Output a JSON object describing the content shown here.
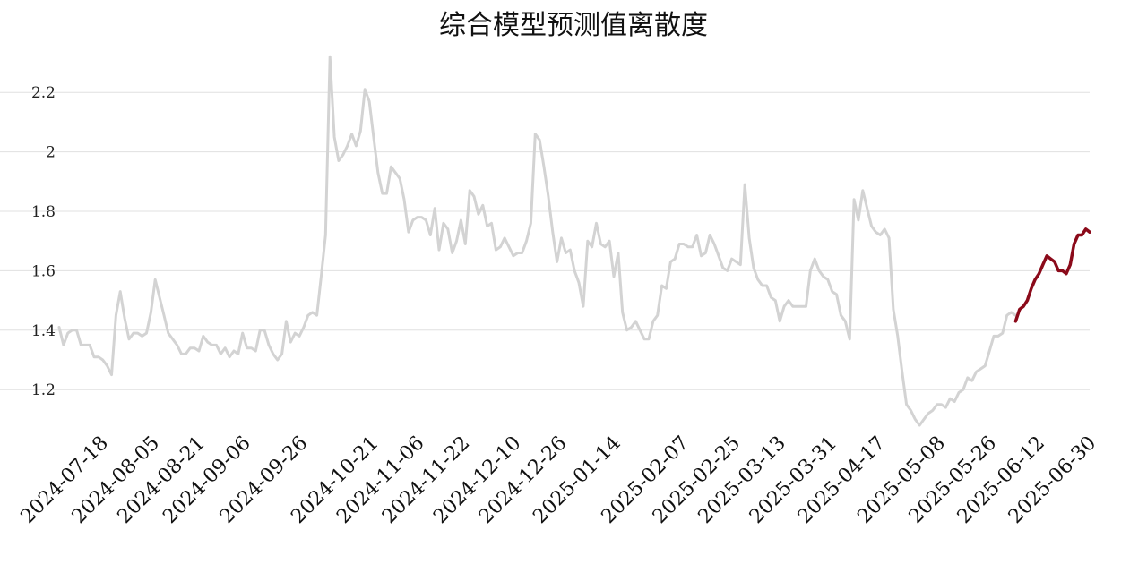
{
  "title": "综合模型预测值离散度",
  "chart_data": {
    "type": "line",
    "title": "综合模型预测值离散度",
    "xlabel": "",
    "ylabel": "",
    "ylim": [
      1.05,
      2.33
    ],
    "yticks": [
      1.2,
      1.4,
      1.6,
      1.8,
      2,
      2.2
    ],
    "ytick_labels": [
      "1.2",
      "1.4",
      "1.6",
      "1.8",
      "2",
      "2.2"
    ],
    "xtick_labels": [
      "2024-07-18",
      "2024-08-05",
      "2024-08-21",
      "2024-09-06",
      "2024-09-26",
      "2024-10-21",
      "2024-11-06",
      "2024-11-22",
      "2024-12-10",
      "2024-12-26",
      "2025-01-14",
      "2025-02-07",
      "2025-02-25",
      "2025-03-13",
      "2025-03-31",
      "2025-04-17",
      "2025-05-08",
      "2025-05-26",
      "2025-06-12",
      "2025-06-30"
    ],
    "grid": true,
    "legend": "none",
    "colors": {
      "history": "#d3d3d3",
      "recent": "#8b0a1a"
    },
    "series": [
      {
        "role": "history",
        "x_start": "2024-07-03",
        "x_end": "2025-06-04",
        "values": [
          1.41,
          1.35,
          1.39,
          1.4,
          1.4,
          1.35,
          1.35,
          1.35,
          1.31,
          1.31,
          1.3,
          1.28,
          1.25,
          1.45,
          1.53,
          1.44,
          1.37,
          1.39,
          1.39,
          1.38,
          1.39,
          1.46,
          1.57,
          1.51,
          1.45,
          1.39,
          1.37,
          1.35,
          1.32,
          1.32,
          1.34,
          1.34,
          1.33,
          1.38,
          1.36,
          1.35,
          1.35,
          1.32,
          1.34,
          1.31,
          1.33,
          1.32,
          1.39,
          1.34,
          1.34,
          1.33,
          1.4,
          1.4,
          1.35,
          1.32,
          1.3,
          1.32,
          1.43,
          1.36,
          1.39,
          1.38,
          1.41,
          1.45,
          1.46,
          1.45,
          1.58,
          1.72,
          2.32,
          2.05,
          1.97,
          1.99,
          2.02,
          2.06,
          2.02,
          2.07,
          2.21,
          2.17,
          2.05,
          1.93,
          1.86,
          1.86,
          1.95,
          1.93,
          1.91,
          1.84,
          1.73,
          1.77,
          1.78,
          1.78,
          1.77,
          1.72,
          1.81,
          1.67,
          1.76,
          1.74,
          1.66,
          1.7,
          1.77,
          1.69,
          1.87,
          1.85,
          1.79,
          1.82,
          1.75,
          1.76,
          1.67,
          1.68,
          1.71,
          1.68,
          1.65,
          1.66,
          1.66,
          1.7,
          1.76,
          2.06,
          2.04,
          1.95,
          1.85,
          1.73,
          1.63,
          1.71,
          1.66,
          1.67,
          1.6,
          1.56,
          1.48,
          1.7,
          1.68,
          1.76,
          1.69,
          1.68,
          1.7,
          1.58,
          1.66,
          1.46,
          1.4,
          1.41,
          1.43,
          1.4,
          1.37,
          1.37,
          1.43,
          1.45,
          1.55,
          1.54,
          1.63,
          1.64,
          1.69,
          1.69,
          1.68,
          1.68,
          1.72,
          1.65,
          1.66,
          1.72,
          1.69,
          1.65,
          1.61,
          1.6,
          1.64,
          1.63,
          1.62,
          1.89,
          1.71,
          1.61,
          1.57,
          1.55,
          1.55,
          1.51,
          1.5,
          1.43,
          1.48,
          1.5,
          1.48,
          1.48,
          1.48,
          1.48,
          1.6,
          1.64,
          1.6,
          1.58,
          1.57,
          1.53,
          1.52,
          1.45,
          1.43,
          1.37,
          1.84,
          1.77,
          1.87,
          1.81,
          1.75,
          1.73,
          1.72,
          1.74,
          1.71,
          1.47,
          1.38,
          1.26,
          1.15,
          1.13,
          1.1,
          1.08,
          1.1,
          1.12,
          1.13,
          1.15,
          1.15,
          1.14,
          1.17,
          1.16,
          1.19,
          1.2,
          1.24,
          1.23,
          1.26,
          1.27,
          1.28,
          1.33,
          1.38,
          1.38,
          1.39,
          1.45,
          1.46,
          1.45
        ]
      },
      {
        "role": "recent",
        "x_start": "2025-06-04",
        "x_end": "2025-06-30",
        "values": [
          1.43,
          1.47,
          1.48,
          1.5,
          1.54,
          1.57,
          1.59,
          1.62,
          1.65,
          1.64,
          1.63,
          1.6,
          1.6,
          1.59,
          1.62,
          1.69,
          1.72,
          1.72,
          1.74,
          1.73
        ]
      }
    ]
  }
}
